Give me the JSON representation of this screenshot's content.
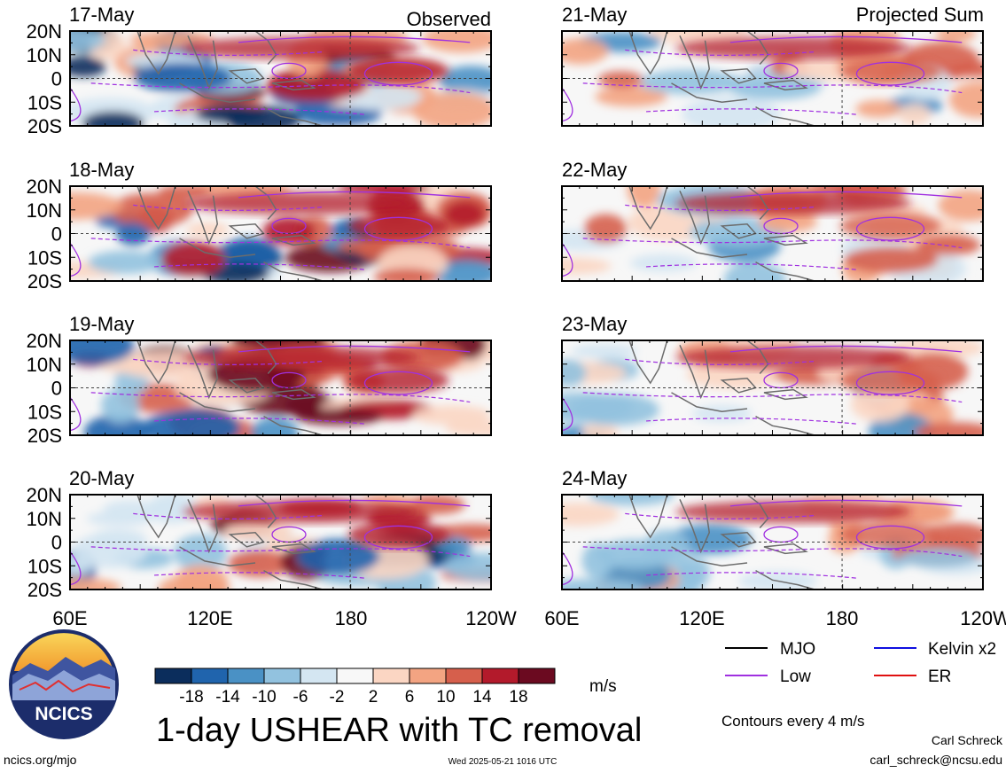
{
  "panels": {
    "left": [
      {
        "date": "17-May",
        "corner_label": "Observed"
      },
      {
        "date": "18-May",
        "corner_label": ""
      },
      {
        "date": "19-May",
        "corner_label": ""
      },
      {
        "date": "20-May",
        "corner_label": ""
      }
    ],
    "right": [
      {
        "date": "21-May",
        "corner_label": "Projected Sum"
      },
      {
        "date": "22-May",
        "corner_label": ""
      },
      {
        "date": "23-May",
        "corner_label": ""
      },
      {
        "date": "24-May",
        "corner_label": ""
      }
    ]
  },
  "axes": {
    "lat_labels": [
      "20N",
      "10N",
      "0",
      "10S",
      "20S"
    ],
    "lon_labels": [
      "60E",
      "120E",
      "180",
      "120W"
    ]
  },
  "colorbar": {
    "tick_labels": [
      "-18",
      "-14",
      "-10",
      "-6",
      "-2",
      "2",
      "6",
      "10",
      "14",
      "18"
    ],
    "colors": [
      "#0b2d5c",
      "#2064ad",
      "#4a91c5",
      "#92c2df",
      "#d4e6f2",
      "#f8f8f8",
      "#fbd6c3",
      "#f3a482",
      "#d65f4c",
      "#b31a2b",
      "#6b0a20"
    ],
    "units": "m/s"
  },
  "legend": {
    "items": [
      {
        "label": "MJO",
        "color": "#000000"
      },
      {
        "label": "Kelvin x2",
        "color": "#1010e0"
      },
      {
        "label": "Low",
        "color": "#a030e0"
      },
      {
        "label": "ER",
        "color": "#e01010"
      }
    ],
    "contour_note": "Contours every 4 m/s"
  },
  "footer": {
    "title": "1-day USHEAR with TC removal",
    "logo_text": "NCICS",
    "url": "ncics.org/mjo",
    "timestamp": "Wed 2025-05-21 1016 UTC",
    "author": "Carl Schreck",
    "email": "carl_schreck@ncsu.edu"
  }
}
